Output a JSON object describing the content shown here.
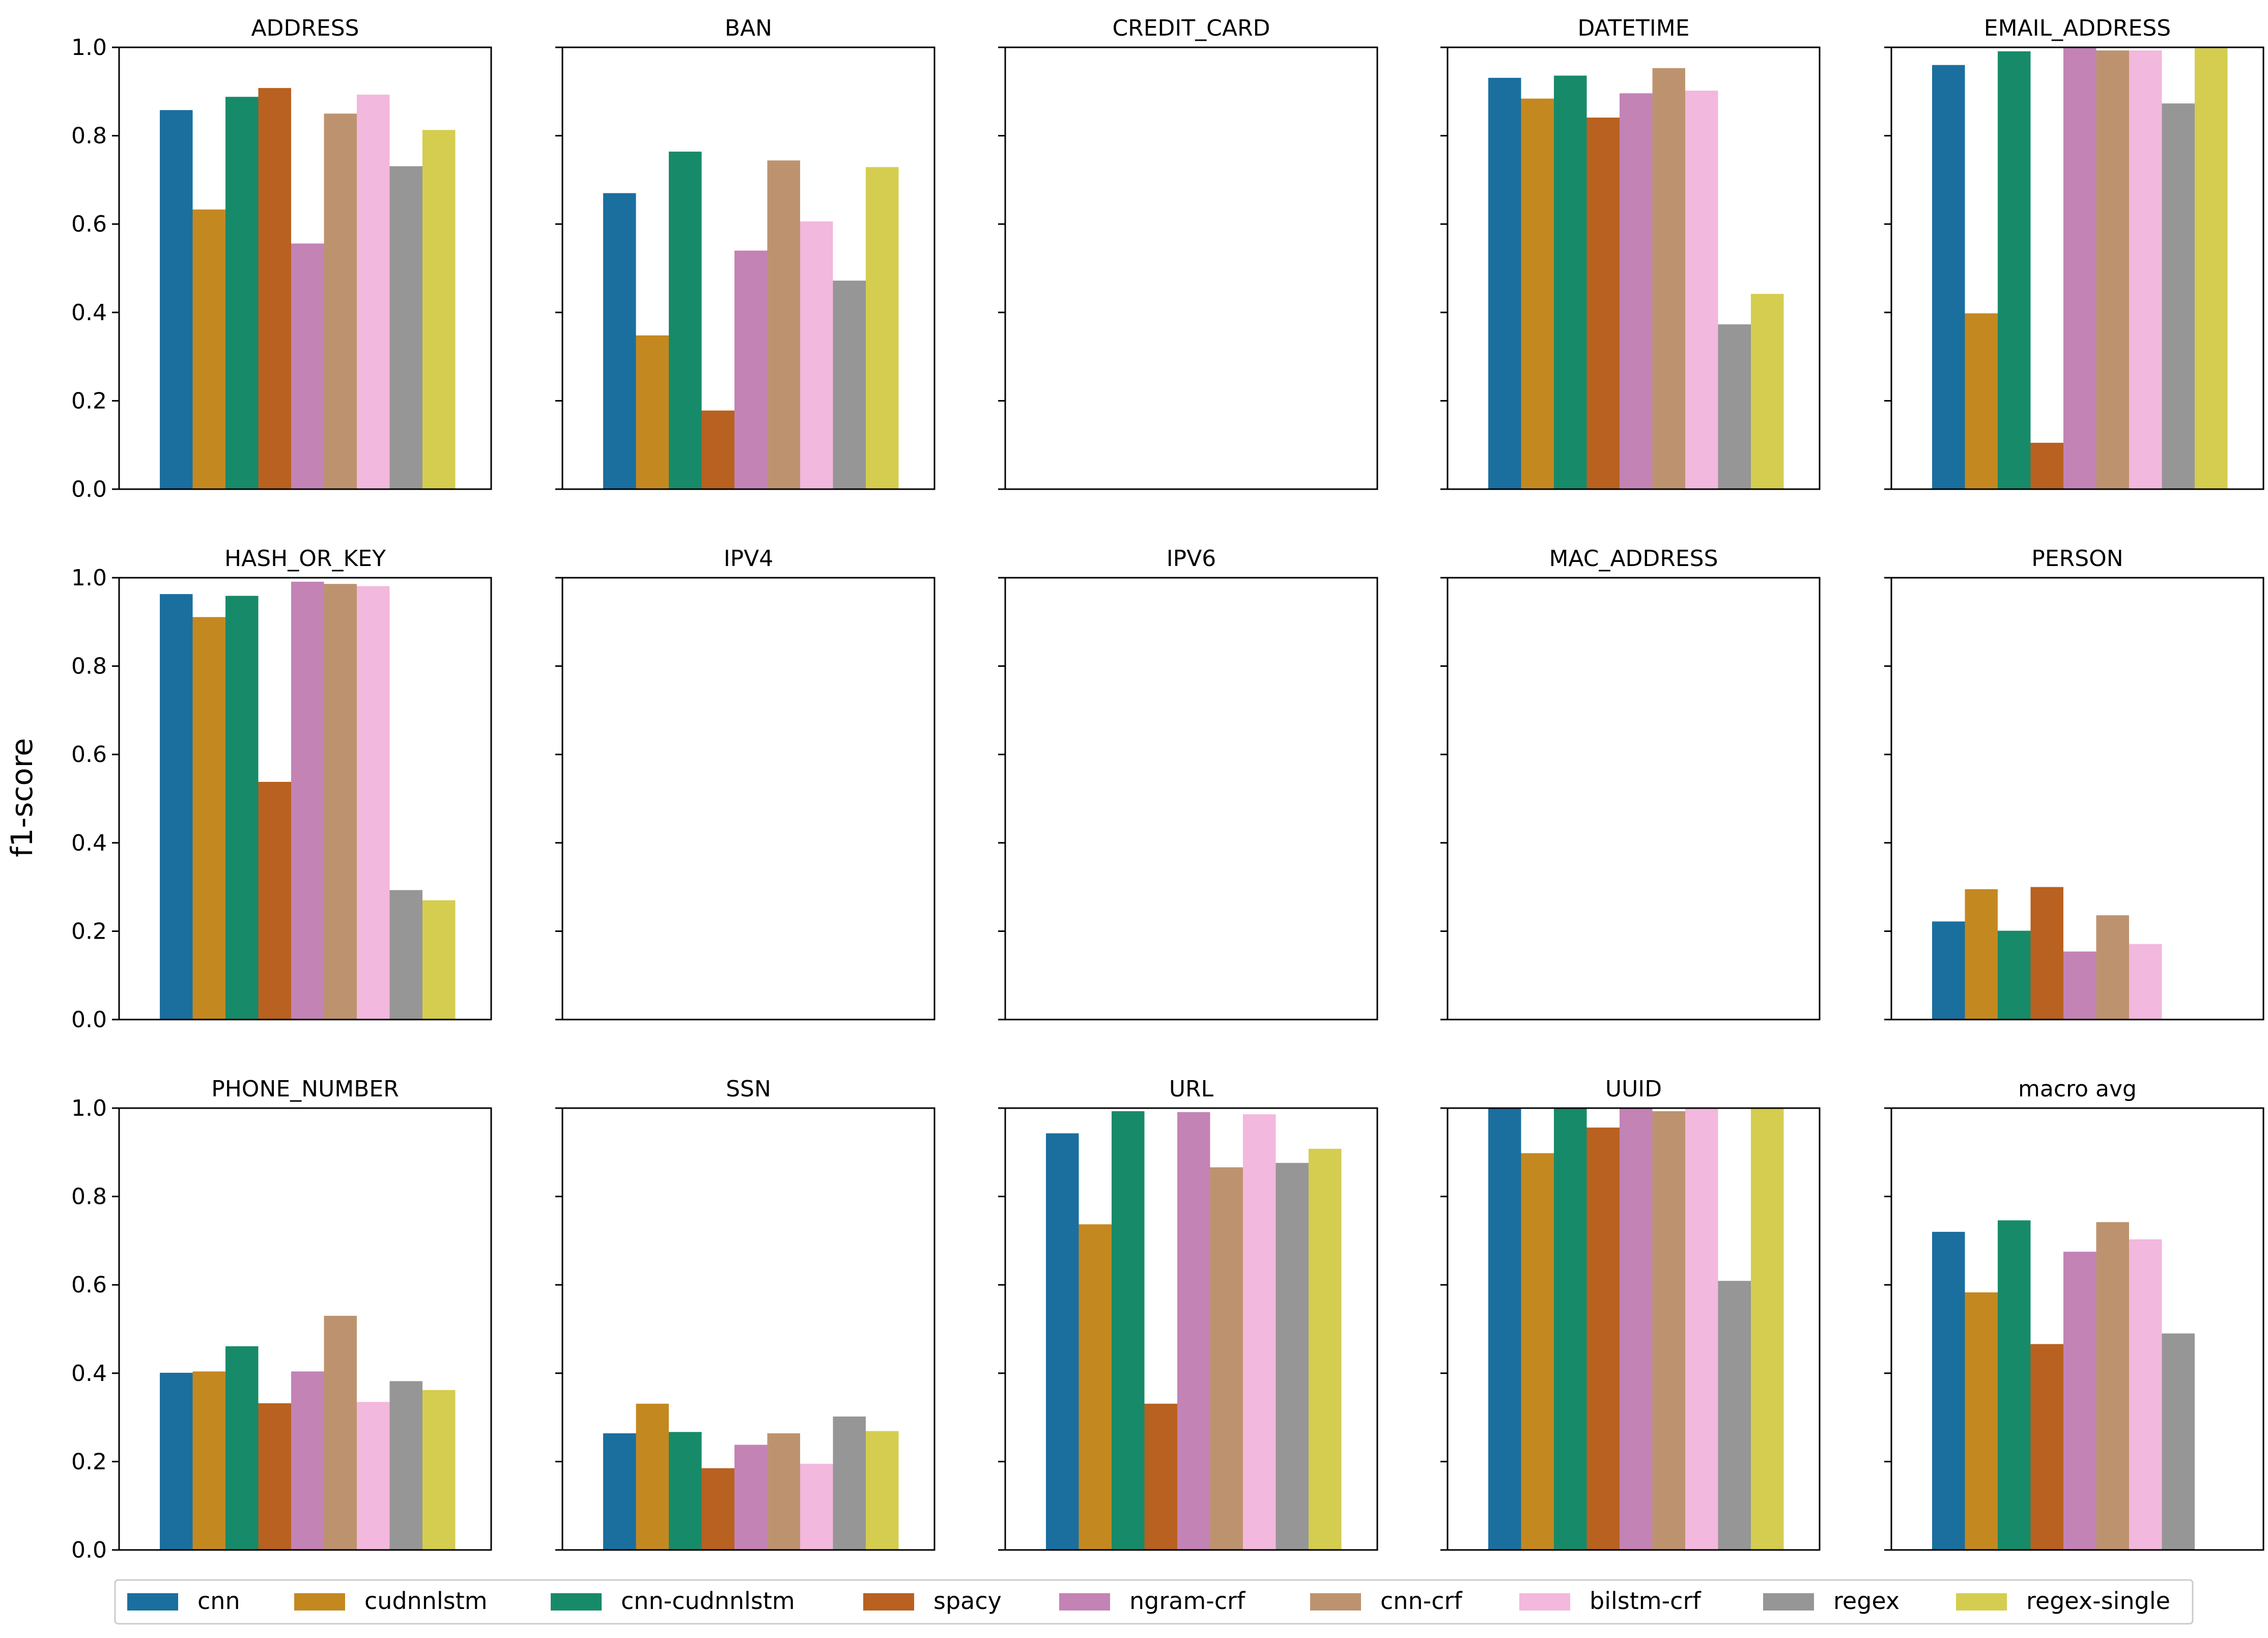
{
  "chart_data": {
    "type": "bar",
    "ylabel": "f1-score",
    "ylim": [
      0,
      1
    ],
    "yticks": [
      "0.0",
      "0.2",
      "0.4",
      "0.6",
      "0.8",
      "1.0"
    ],
    "series": [
      {
        "name": "cnn",
        "color": "#1a6f9f"
      },
      {
        "name": "cudnnlstm",
        "color": "#c48820"
      },
      {
        "name": "cnn-cudnnlstm",
        "color": "#178a69"
      },
      {
        "name": "spacy",
        "color": "#b86120"
      },
      {
        "name": "ngram-crf",
        "color": "#c383b5"
      },
      {
        "name": "cnn-crf",
        "color": "#bd936f"
      },
      {
        "name": "bilstm-crf",
        "color": "#f2b8dd"
      },
      {
        "name": "regex",
        "color": "#969696"
      },
      {
        "name": "regex-single",
        "color": "#d4cd4f"
      }
    ],
    "panels": [
      {
        "title": "ADDRESS",
        "values": [
          0.858,
          0.633,
          0.888,
          0.908,
          0.556,
          0.85,
          0.893,
          0.731,
          0.813
        ]
      },
      {
        "title": "BAN",
        "values": [
          0.67,
          0.348,
          0.764,
          0.178,
          0.54,
          0.744,
          0.606,
          0.472,
          0.729
        ]
      },
      {
        "title": "CREDIT_CARD",
        "values": [
          null,
          null,
          null,
          null,
          null,
          null,
          null,
          null,
          null
        ]
      },
      {
        "title": "DATETIME",
        "values": [
          0.931,
          0.884,
          0.936,
          0.841,
          0.896,
          0.953,
          0.902,
          0.373,
          0.442
        ]
      },
      {
        "title": "EMAIL_ADDRESS",
        "values": [
          0.96,
          0.398,
          0.991,
          0.105,
          1.0,
          0.993,
          0.993,
          0.873,
          0.998
        ]
      },
      {
        "title": "HASH_OR_KEY",
        "values": [
          0.963,
          0.911,
          0.959,
          0.538,
          0.991,
          0.986,
          0.981,
          0.293,
          0.27
        ]
      },
      {
        "title": "IPV4",
        "values": [
          null,
          null,
          null,
          null,
          null,
          null,
          null,
          null,
          null
        ]
      },
      {
        "title": "IPV6",
        "values": [
          null,
          null,
          null,
          null,
          null,
          null,
          null,
          null,
          null
        ]
      },
      {
        "title": "MAC_ADDRESS",
        "values": [
          null,
          null,
          null,
          null,
          null,
          null,
          null,
          null,
          null
        ]
      },
      {
        "title": "PERSON",
        "values": [
          0.222,
          0.295,
          0.201,
          0.3,
          0.154,
          0.236,
          0.171,
          null,
          null
        ]
      },
      {
        "title": "PHONE_NUMBER",
        "values": [
          0.401,
          0.404,
          0.461,
          0.332,
          0.404,
          0.53,
          0.335,
          0.382,
          0.362
        ]
      },
      {
        "title": "SSN",
        "values": [
          0.264,
          0.331,
          0.267,
          0.185,
          0.238,
          0.264,
          0.195,
          0.302,
          0.269
        ]
      },
      {
        "title": "URL",
        "values": [
          0.943,
          0.737,
          0.993,
          0.331,
          0.991,
          0.866,
          0.986,
          0.876,
          0.908
        ]
      },
      {
        "title": "UUID",
        "values": [
          1.0,
          0.898,
          1.0,
          0.956,
          1.0,
          0.993,
          1.0,
          0.609,
          1.0
        ]
      },
      {
        "title": "macro avg",
        "values": [
          0.72,
          0.583,
          0.746,
          0.466,
          0.675,
          0.742,
          0.703,
          0.49,
          null
        ]
      }
    ]
  }
}
